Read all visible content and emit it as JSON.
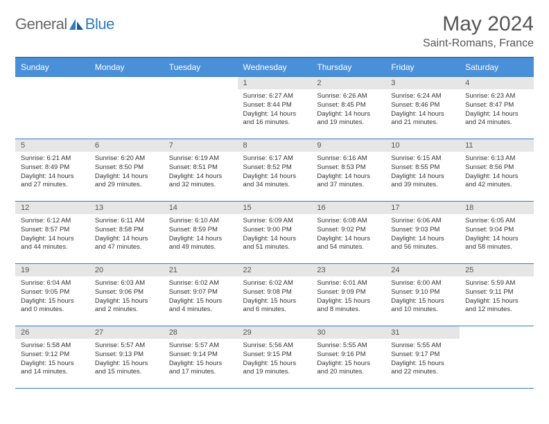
{
  "brand": {
    "part1": "General",
    "part2": "Blue"
  },
  "title": "May 2024",
  "location": "Saint-Romans, France",
  "colors": {
    "header_bg": "#4a90d9",
    "border": "#2f7bbf",
    "daybar_bg": "#e6e6e6",
    "text": "#333333",
    "title_text": "#555555"
  },
  "weekdays": [
    "Sunday",
    "Monday",
    "Tuesday",
    "Wednesday",
    "Thursday",
    "Friday",
    "Saturday"
  ],
  "weeks": [
    [
      null,
      null,
      null,
      {
        "n": "1",
        "sr": "6:27 AM",
        "ss": "8:44 PM",
        "dl": "14 hours and 16 minutes."
      },
      {
        "n": "2",
        "sr": "6:26 AM",
        "ss": "8:45 PM",
        "dl": "14 hours and 19 minutes."
      },
      {
        "n": "3",
        "sr": "6:24 AM",
        "ss": "8:46 PM",
        "dl": "14 hours and 21 minutes."
      },
      {
        "n": "4",
        "sr": "6:23 AM",
        "ss": "8:47 PM",
        "dl": "14 hours and 24 minutes."
      }
    ],
    [
      {
        "n": "5",
        "sr": "6:21 AM",
        "ss": "8:49 PM",
        "dl": "14 hours and 27 minutes."
      },
      {
        "n": "6",
        "sr": "6:20 AM",
        "ss": "8:50 PM",
        "dl": "14 hours and 29 minutes."
      },
      {
        "n": "7",
        "sr": "6:19 AM",
        "ss": "8:51 PM",
        "dl": "14 hours and 32 minutes."
      },
      {
        "n": "8",
        "sr": "6:17 AM",
        "ss": "8:52 PM",
        "dl": "14 hours and 34 minutes."
      },
      {
        "n": "9",
        "sr": "6:16 AM",
        "ss": "8:53 PM",
        "dl": "14 hours and 37 minutes."
      },
      {
        "n": "10",
        "sr": "6:15 AM",
        "ss": "8:55 PM",
        "dl": "14 hours and 39 minutes."
      },
      {
        "n": "11",
        "sr": "6:13 AM",
        "ss": "8:56 PM",
        "dl": "14 hours and 42 minutes."
      }
    ],
    [
      {
        "n": "12",
        "sr": "6:12 AM",
        "ss": "8:57 PM",
        "dl": "14 hours and 44 minutes."
      },
      {
        "n": "13",
        "sr": "6:11 AM",
        "ss": "8:58 PM",
        "dl": "14 hours and 47 minutes."
      },
      {
        "n": "14",
        "sr": "6:10 AM",
        "ss": "8:59 PM",
        "dl": "14 hours and 49 minutes."
      },
      {
        "n": "15",
        "sr": "6:09 AM",
        "ss": "9:00 PM",
        "dl": "14 hours and 51 minutes."
      },
      {
        "n": "16",
        "sr": "6:08 AM",
        "ss": "9:02 PM",
        "dl": "14 hours and 54 minutes."
      },
      {
        "n": "17",
        "sr": "6:06 AM",
        "ss": "9:03 PM",
        "dl": "14 hours and 56 minutes."
      },
      {
        "n": "18",
        "sr": "6:05 AM",
        "ss": "9:04 PM",
        "dl": "14 hours and 58 minutes."
      }
    ],
    [
      {
        "n": "19",
        "sr": "6:04 AM",
        "ss": "9:05 PM",
        "dl": "15 hours and 0 minutes."
      },
      {
        "n": "20",
        "sr": "6:03 AM",
        "ss": "9:06 PM",
        "dl": "15 hours and 2 minutes."
      },
      {
        "n": "21",
        "sr": "6:02 AM",
        "ss": "9:07 PM",
        "dl": "15 hours and 4 minutes."
      },
      {
        "n": "22",
        "sr": "6:02 AM",
        "ss": "9:08 PM",
        "dl": "15 hours and 6 minutes."
      },
      {
        "n": "23",
        "sr": "6:01 AM",
        "ss": "9:09 PM",
        "dl": "15 hours and 8 minutes."
      },
      {
        "n": "24",
        "sr": "6:00 AM",
        "ss": "9:10 PM",
        "dl": "15 hours and 10 minutes."
      },
      {
        "n": "25",
        "sr": "5:59 AM",
        "ss": "9:11 PM",
        "dl": "15 hours and 12 minutes."
      }
    ],
    [
      {
        "n": "26",
        "sr": "5:58 AM",
        "ss": "9:12 PM",
        "dl": "15 hours and 14 minutes."
      },
      {
        "n": "27",
        "sr": "5:57 AM",
        "ss": "9:13 PM",
        "dl": "15 hours and 15 minutes."
      },
      {
        "n": "28",
        "sr": "5:57 AM",
        "ss": "9:14 PM",
        "dl": "15 hours and 17 minutes."
      },
      {
        "n": "29",
        "sr": "5:56 AM",
        "ss": "9:15 PM",
        "dl": "15 hours and 19 minutes."
      },
      {
        "n": "30",
        "sr": "5:55 AM",
        "ss": "9:16 PM",
        "dl": "15 hours and 20 minutes."
      },
      {
        "n": "31",
        "sr": "5:55 AM",
        "ss": "9:17 PM",
        "dl": "15 hours and 22 minutes."
      },
      null
    ]
  ],
  "labels": {
    "sunrise": "Sunrise: ",
    "sunset": "Sunset: ",
    "daylight": "Daylight: "
  }
}
